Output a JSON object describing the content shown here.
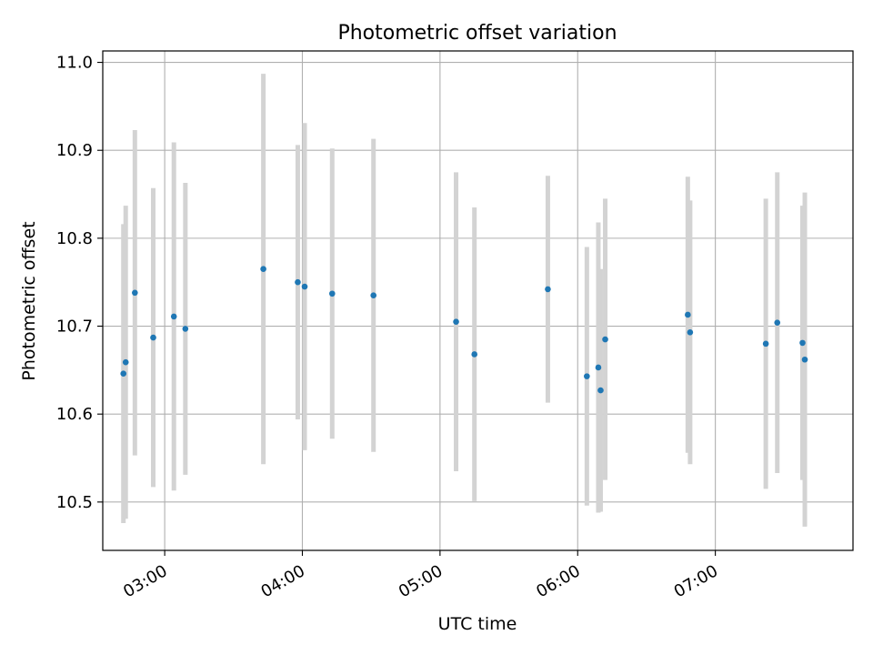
{
  "chart_data": {
    "type": "scatter",
    "title": "Photometric offset variation",
    "xlabel": "UTC time",
    "ylabel": "Photometric offset",
    "x_tick_labels": [
      "03:00",
      "04:00",
      "05:00",
      "06:00",
      "07:00"
    ],
    "x_ticks": [
      "03:00",
      "04:00",
      "05:00",
      "06:00",
      "07:00"
    ],
    "y_ticks": [
      10.5,
      10.6,
      10.7,
      10.8,
      10.9,
      11.0
    ],
    "y_tick_labels": [
      "10.5",
      "10.6",
      "10.7",
      "10.8",
      "10.9",
      "11.0"
    ],
    "xlim": [
      "02:33",
      "08:00"
    ],
    "ylim": [
      10.445,
      11.013
    ],
    "grid": true,
    "colors": {
      "points": "#1f77b4",
      "errorbars": "#d3d3d3",
      "grid": "#b0b0b0"
    },
    "points": [
      {
        "x": "02:42",
        "y": 10.646,
        "yerr": 0.17
      },
      {
        "x": "02:43",
        "y": 10.659,
        "yerr": 0.178
      },
      {
        "x": "02:47",
        "y": 10.738,
        "yerr": 0.185
      },
      {
        "x": "02:55",
        "y": 10.687,
        "yerr": 0.17
      },
      {
        "x": "03:04",
        "y": 10.711,
        "yerr": 0.198
      },
      {
        "x": "03:09",
        "y": 10.697,
        "yerr": 0.166
      },
      {
        "x": "03:43",
        "y": 10.765,
        "yerr": 0.222
      },
      {
        "x": "03:58",
        "y": 10.75,
        "yerr": 0.156
      },
      {
        "x": "04:01",
        "y": 10.745,
        "yerr": 0.186
      },
      {
        "x": "04:13",
        "y": 10.737,
        "yerr": 0.165
      },
      {
        "x": "04:31",
        "y": 10.735,
        "yerr": 0.178
      },
      {
        "x": "05:07",
        "y": 10.705,
        "yerr": 0.17
      },
      {
        "x": "05:15",
        "y": 10.668,
        "yerr": 0.167
      },
      {
        "x": "05:47",
        "y": 10.742,
        "yerr": 0.129
      },
      {
        "x": "06:04",
        "y": 10.643,
        "yerr": 0.147
      },
      {
        "x": "06:09",
        "y": 10.653,
        "yerr": 0.165
      },
      {
        "x": "06:10",
        "y": 10.627,
        "yerr": 0.138
      },
      {
        "x": "06:12",
        "y": 10.685,
        "yerr": 0.16
      },
      {
        "x": "06:48",
        "y": 10.713,
        "yerr": 0.157
      },
      {
        "x": "06:49",
        "y": 10.693,
        "yerr": 0.15
      },
      {
        "x": "07:22",
        "y": 10.68,
        "yerr": 0.165
      },
      {
        "x": "07:27",
        "y": 10.704,
        "yerr": 0.171
      },
      {
        "x": "07:38",
        "y": 10.681,
        "yerr": 0.156
      },
      {
        "x": "07:39",
        "y": 10.662,
        "yerr": 0.19
      }
    ]
  }
}
